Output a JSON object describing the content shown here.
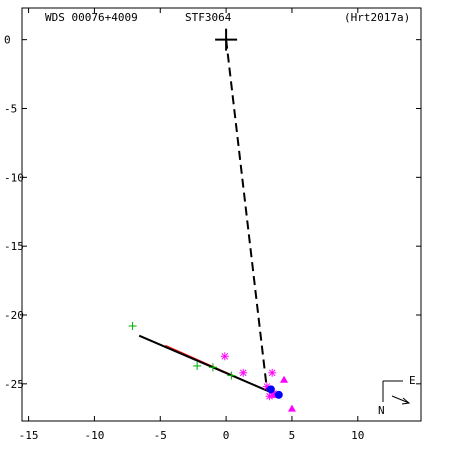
{
  "header": {
    "wds_id": "WDS 00076+4009",
    "discoverer": "STF3064",
    "reference": "(Hrt2017a)"
  },
  "compass": {
    "east_label": "E",
    "north_label": "N"
  },
  "colors": {
    "axis": "#000000",
    "orbit": "#000000",
    "green": "#00aa00",
    "magenta": "#ff00ff",
    "blue": "#0000ff",
    "red": "#ff0000"
  },
  "chart_data": {
    "type": "scatter",
    "title": "",
    "xlabel": "",
    "ylabel": "",
    "xlim": [
      -15.5,
      14.8
    ],
    "ylim": [
      -27.7,
      2.3
    ],
    "x_ticks": [
      -15,
      -10,
      -5,
      0,
      5,
      10
    ],
    "y_ticks": [
      0,
      -5,
      -10,
      -15,
      -20,
      -25
    ],
    "x_tick_labels": [
      "-15",
      "-10",
      "-5",
      "0",
      "5",
      "10"
    ],
    "y_tick_labels": [
      "0",
      "-5",
      "-10",
      "-15",
      "-20",
      "-25"
    ],
    "grid": false,
    "primary_marker": {
      "x": 0,
      "y": 0
    },
    "orbit_line": {
      "from": [
        -6.6,
        -21.5
      ],
      "to": [
        4.1,
        -25.9
      ]
    },
    "dashed_line": {
      "from": [
        0,
        0
      ],
      "to": [
        3.1,
        -25.4
      ]
    },
    "red_line": {
      "from": [
        -4.6,
        -22.2
      ],
      "to": [
        1.5,
        -24.8
      ]
    },
    "series": [
      {
        "marker": "plus",
        "color": "green",
        "points": [
          [
            -7.1,
            -20.8
          ],
          [
            -2.2,
            -23.7
          ],
          [
            -1.0,
            -23.8
          ],
          [
            0.4,
            -24.4
          ]
        ]
      },
      {
        "marker": "asterisk",
        "color": "magenta",
        "points": [
          [
            -0.1,
            -23.0
          ],
          [
            1.3,
            -24.2
          ],
          [
            3.5,
            -24.2
          ],
          [
            3.1,
            -25.2
          ],
          [
            3.6,
            -25.7
          ],
          [
            3.3,
            -25.9
          ]
        ]
      },
      {
        "marker": "triangle",
        "color": "magenta",
        "points": [
          [
            4.4,
            -24.7
          ],
          [
            5.0,
            -26.8
          ],
          [
            3.7,
            -25.8
          ]
        ]
      },
      {
        "marker": "circle",
        "color": "blue",
        "points": [
          [
            3.4,
            -25.4
          ],
          [
            4.0,
            -25.8
          ]
        ]
      }
    ]
  }
}
